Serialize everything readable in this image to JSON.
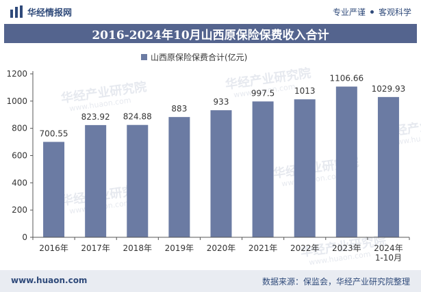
{
  "header": {
    "brand_name": "华经情报网",
    "tagline_left": "专业严谨",
    "tagline_right": "客观科学"
  },
  "chart_data": {
    "type": "bar",
    "title": "2016-2024年10月山西原保险保费收入合计",
    "legend": "山西原保险保费合计(亿元)",
    "legend_position": "top",
    "categories": [
      "2016年",
      "2017年",
      "2018年",
      "2019年",
      "2020年",
      "2021年",
      "2022年",
      "2023年",
      "2024年\n1-10月"
    ],
    "values": [
      700.55,
      823.92,
      824.88,
      883,
      933,
      997.5,
      1013,
      1106.66,
      1029.93
    ],
    "value_labels": [
      "700.55",
      "823.92",
      "824.88",
      "883",
      "933",
      "997.5",
      "1013",
      "1106.66",
      "1029.93"
    ],
    "ylim": [
      0,
      1200
    ],
    "yticks": [
      0,
      200,
      400,
      600,
      800,
      1000,
      1200
    ],
    "grid": false,
    "bar_color": "#6b7ba3"
  },
  "watermark": {
    "text": "华经产业研究院",
    "sub": "www.huaon.com"
  },
  "footer": {
    "url": "www.huaon.com",
    "source": "数据来源：保监会，华经产业研究院整理"
  }
}
